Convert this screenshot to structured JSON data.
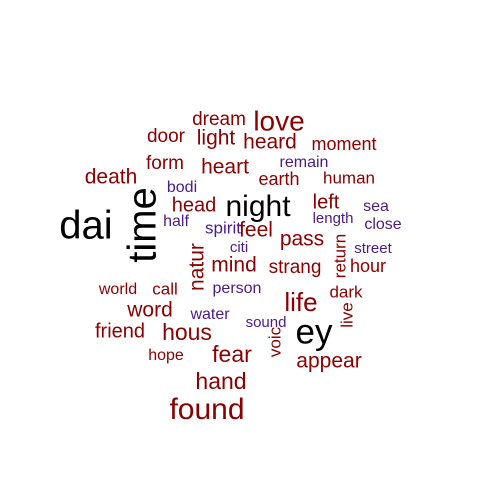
{
  "colors": {
    "background": "#ffffff",
    "black": "#000000",
    "darkred": "#8b0000",
    "purple": "#4b1b87"
  },
  "words": [
    {
      "text": "dai",
      "color": "black"
    },
    {
      "text": "time",
      "color": "black"
    },
    {
      "text": "night",
      "color": "black"
    },
    {
      "text": "ey",
      "color": "black"
    },
    {
      "text": "love",
      "color": "darkred"
    },
    {
      "text": "found",
      "color": "darkred"
    },
    {
      "text": "life",
      "color": "darkred"
    },
    {
      "text": "dream",
      "color": "darkred"
    },
    {
      "text": "door",
      "color": "darkred"
    },
    {
      "text": "light",
      "color": "darkred"
    },
    {
      "text": "heard",
      "color": "darkred"
    },
    {
      "text": "moment",
      "color": "darkred"
    },
    {
      "text": "form",
      "color": "darkred"
    },
    {
      "text": "heart",
      "color": "darkred"
    },
    {
      "text": "remain",
      "color": "purple"
    },
    {
      "text": "death",
      "color": "darkred"
    },
    {
      "text": "earth",
      "color": "darkred"
    },
    {
      "text": "human",
      "color": "darkred"
    },
    {
      "text": "bodi",
      "color": "purple"
    },
    {
      "text": "head",
      "color": "darkred"
    },
    {
      "text": "left",
      "color": "darkred"
    },
    {
      "text": "sea",
      "color": "purple"
    },
    {
      "text": "half",
      "color": "purple"
    },
    {
      "text": "spirit",
      "color": "purple"
    },
    {
      "text": "feel",
      "color": "darkred"
    },
    {
      "text": "length",
      "color": "purple"
    },
    {
      "text": "close",
      "color": "purple"
    },
    {
      "text": "pass",
      "color": "darkred"
    },
    {
      "text": "natur",
      "color": "darkred"
    },
    {
      "text": "citi",
      "color": "purple"
    },
    {
      "text": "return",
      "color": "darkred"
    },
    {
      "text": "street",
      "color": "purple"
    },
    {
      "text": "mind",
      "color": "darkred"
    },
    {
      "text": "strang",
      "color": "darkred"
    },
    {
      "text": "hour",
      "color": "darkred"
    },
    {
      "text": "world",
      "color": "darkred"
    },
    {
      "text": "call",
      "color": "darkred"
    },
    {
      "text": "person",
      "color": "purple"
    },
    {
      "text": "dark",
      "color": "darkred"
    },
    {
      "text": "word",
      "color": "darkred"
    },
    {
      "text": "water",
      "color": "purple"
    },
    {
      "text": "sound",
      "color": "purple"
    },
    {
      "text": "live",
      "color": "darkred"
    },
    {
      "text": "friend",
      "color": "darkred"
    },
    {
      "text": "hous",
      "color": "darkred"
    },
    {
      "text": "hope",
      "color": "darkred"
    },
    {
      "text": "fear",
      "color": "darkred"
    },
    {
      "text": "voic",
      "color": "darkred"
    },
    {
      "text": "appear",
      "color": "darkred"
    },
    {
      "text": "hand",
      "color": "darkred"
    }
  ]
}
